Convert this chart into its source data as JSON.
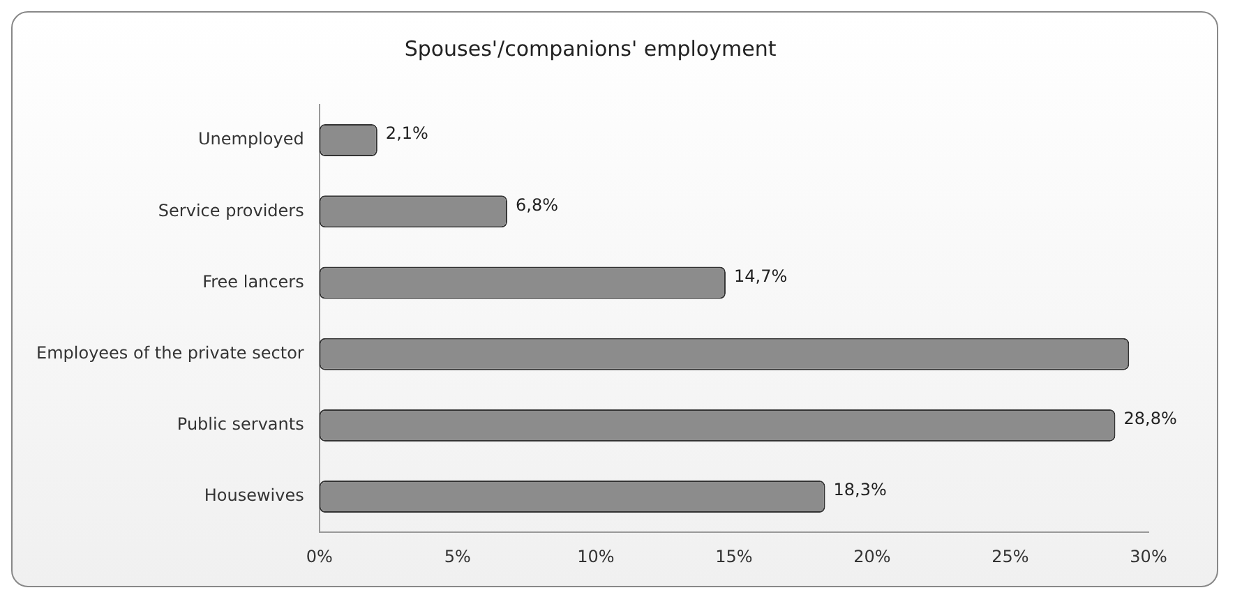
{
  "chart_data": {
    "type": "bar",
    "orientation": "horizontal",
    "title": "Spouses'/companions' employment",
    "categories": [
      "Unemployed",
      "Service providers",
      "Free lancers",
      "Employees of the private sector",
      "Public servants",
      "Housewives"
    ],
    "values": [
      2.1,
      6.8,
      14.7,
      29.3,
      28.8,
      18.3
    ],
    "value_labels": [
      "2,1%",
      "6,8%",
      "14,7%",
      null,
      "28,8%",
      "18,3%"
    ],
    "color": "#8c8c8c",
    "xlim": [
      0,
      30
    ],
    "xticks": [
      {
        "value": 0,
        "label": "0%"
      },
      {
        "value": 5,
        "label": "5%"
      },
      {
        "value": 10,
        "label": "10%"
      },
      {
        "value": 15,
        "label": "15%"
      },
      {
        "value": 20,
        "label": "20%"
      },
      {
        "value": 25,
        "label": "25%"
      },
      {
        "value": 30,
        "label": "30%"
      }
    ],
    "grid": false,
    "legend": false
  }
}
